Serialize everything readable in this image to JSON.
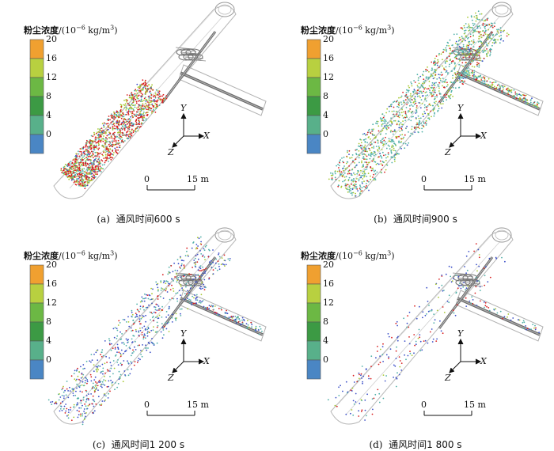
{
  "legend": {
    "title_cn": "粉尘浓度",
    "title_unit": "/(10",
    "title_exp": "−6",
    "title_unit2": " kg/m",
    "title_cube": "3",
    "title_close": ")",
    "ticks": [
      "20",
      "16",
      "12",
      "8",
      "4",
      "0"
    ],
    "colors": [
      "#f0a030",
      "#b8d040",
      "#6cb844",
      "#3c9a44",
      "#58b08a",
      "#4a86c4"
    ]
  },
  "axes": {
    "y": "Y",
    "x": "X",
    "z": "Z"
  },
  "scale_bar": {
    "start": "0",
    "end": "15 m"
  },
  "panels": [
    {
      "label": "(a)",
      "title": "通风时间600 s"
    },
    {
      "label": "(b)",
      "title": "通风时间900 s"
    },
    {
      "label": "(c)",
      "title": "通风时间1 200 s"
    },
    {
      "label": "(d)",
      "title": "通风时间1 800 s"
    }
  ],
  "particle_colors": {
    "high": "#d82020",
    "mid": "#a8c832",
    "low": "#50b0a8",
    "blue": "#3c50c8"
  }
}
